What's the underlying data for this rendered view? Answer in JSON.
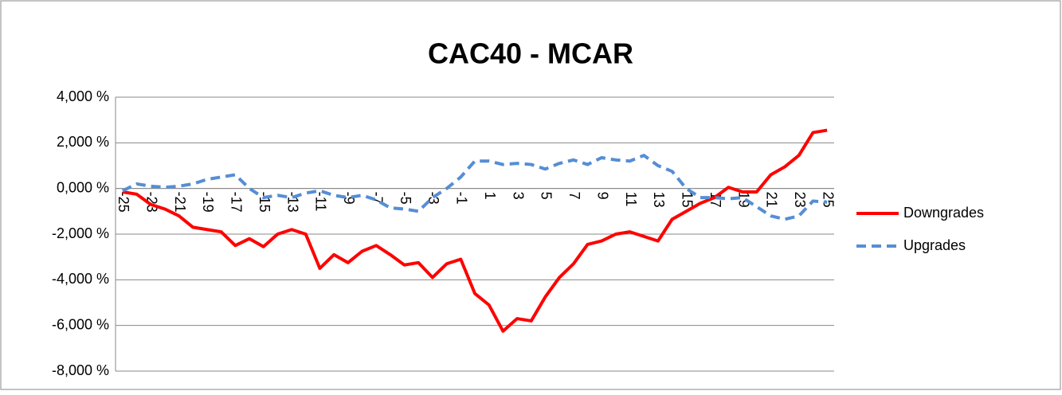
{
  "chart_data": {
    "type": "line",
    "title": "CAC40 - MCAR",
    "categories": [
      "-25",
      null,
      "-23",
      null,
      "-21",
      null,
      "-19",
      null,
      "-17",
      null,
      "-15",
      null,
      "-13",
      null,
      "-11",
      null,
      "-9",
      null,
      "-7",
      null,
      "-5",
      null,
      "-3",
      null,
      "-1",
      null,
      "1",
      null,
      "3",
      null,
      "5",
      null,
      "7",
      null,
      "9",
      null,
      "11",
      null,
      "13",
      null,
      "15",
      null,
      "17",
      null,
      "19",
      null,
      "21",
      null,
      "23",
      null,
      "25"
    ],
    "series": [
      {
        "name": "Downgrades",
        "color": "#ff0000",
        "dash": false,
        "values": [
          -0.15,
          -0.25,
          -0.7,
          -0.9,
          -1.2,
          -1.7,
          -1.8,
          -1.9,
          -2.5,
          -2.2,
          -2.55,
          -2.0,
          -1.8,
          -2.0,
          -3.5,
          -2.9,
          -3.25,
          -2.75,
          -2.5,
          -2.9,
          -3.35,
          -3.25,
          -3.9,
          -3.3,
          -3.1,
          -4.6,
          -5.1,
          -6.25,
          -5.7,
          -5.8,
          -4.75,
          -3.9,
          -3.3,
          -2.45,
          -2.3,
          -2.0,
          -1.9,
          -2.1,
          -2.3,
          -1.35,
          -1.0,
          -0.65,
          -0.4,
          0.05,
          -0.15,
          -0.15,
          0.6,
          0.95,
          1.45,
          2.45,
          2.55
        ]
      },
      {
        "name": "Upgrades",
        "color": "#558ed5",
        "dash": true,
        "values": [
          -0.1,
          0.2,
          0.1,
          0.05,
          0.1,
          0.2,
          0.4,
          0.5,
          0.6,
          0.0,
          -0.4,
          -0.3,
          -0.4,
          -0.2,
          -0.1,
          -0.3,
          -0.4,
          -0.3,
          -0.5,
          -0.85,
          -0.9,
          -1.0,
          -0.4,
          0.0,
          0.5,
          1.2,
          1.2,
          1.05,
          1.1,
          1.05,
          0.85,
          1.1,
          1.25,
          1.05,
          1.35,
          1.25,
          1.2,
          1.45,
          1.0,
          0.75,
          0.0,
          -0.4,
          -0.4,
          -0.45,
          -0.4,
          -0.8,
          -1.2,
          -1.35,
          -1.2,
          -0.55,
          -0.6
        ]
      }
    ],
    "ylim": [
      -8,
      4
    ],
    "yticks": [
      {
        "value": -8,
        "label": "-8,000 %"
      },
      {
        "value": -6,
        "label": "-6,000 %"
      },
      {
        "value": -4,
        "label": "-4,000 %"
      },
      {
        "value": -2,
        "label": "-2,000 %"
      },
      {
        "value": 0,
        "label": "0,000 %"
      },
      {
        "value": 2,
        "label": "2,000 %"
      },
      {
        "value": 4,
        "label": "4,000 %"
      }
    ],
    "grid": true,
    "legend": "right"
  }
}
